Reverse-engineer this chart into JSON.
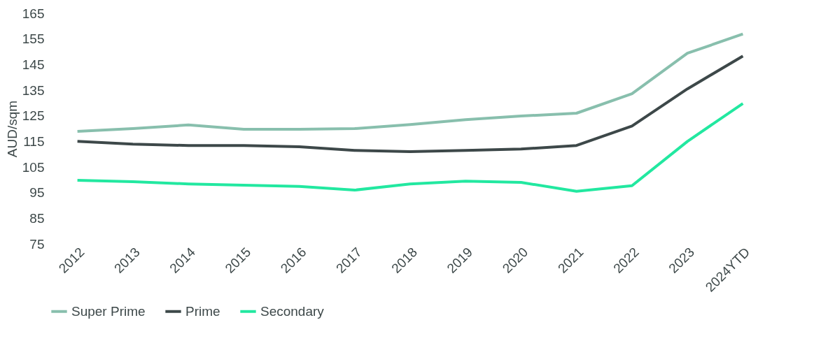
{
  "chart_data": {
    "type": "line",
    "ylabel": "AUD/sqm",
    "categories": [
      "2012",
      "2013",
      "2014",
      "2015",
      "2016",
      "2017",
      "2018",
      "2019",
      "2020",
      "2021",
      "2022",
      "2023",
      "2024YTD"
    ],
    "ylim": [
      75,
      165
    ],
    "yticks": [
      75,
      85,
      95,
      105,
      115,
      125,
      135,
      145,
      155,
      165
    ],
    "grid": false,
    "legend": "bottom",
    "marker": "none",
    "line_style": "solid",
    "series": [
      {
        "name": "Super Prime",
        "color": "#88bfad",
        "values": [
          118.9,
          120,
          121.4,
          119.7,
          119.7,
          120,
          121.6,
          123.5,
          124.9,
          126,
          133.6,
          149.4,
          156.9
        ]
      },
      {
        "name": "Prime",
        "color": "#3d4849",
        "values": [
          115,
          113.9,
          113.4,
          113.4,
          112.9,
          111.5,
          111,
          111.5,
          112,
          113.4,
          121,
          135.5,
          148.3
        ]
      },
      {
        "name": "Secondary",
        "color": "#22e8a0",
        "values": [
          99.8,
          99.3,
          98.4,
          97.9,
          97.4,
          96,
          98.4,
          99.5,
          99,
          95.5,
          97.7,
          115,
          129.8
        ]
      }
    ]
  }
}
